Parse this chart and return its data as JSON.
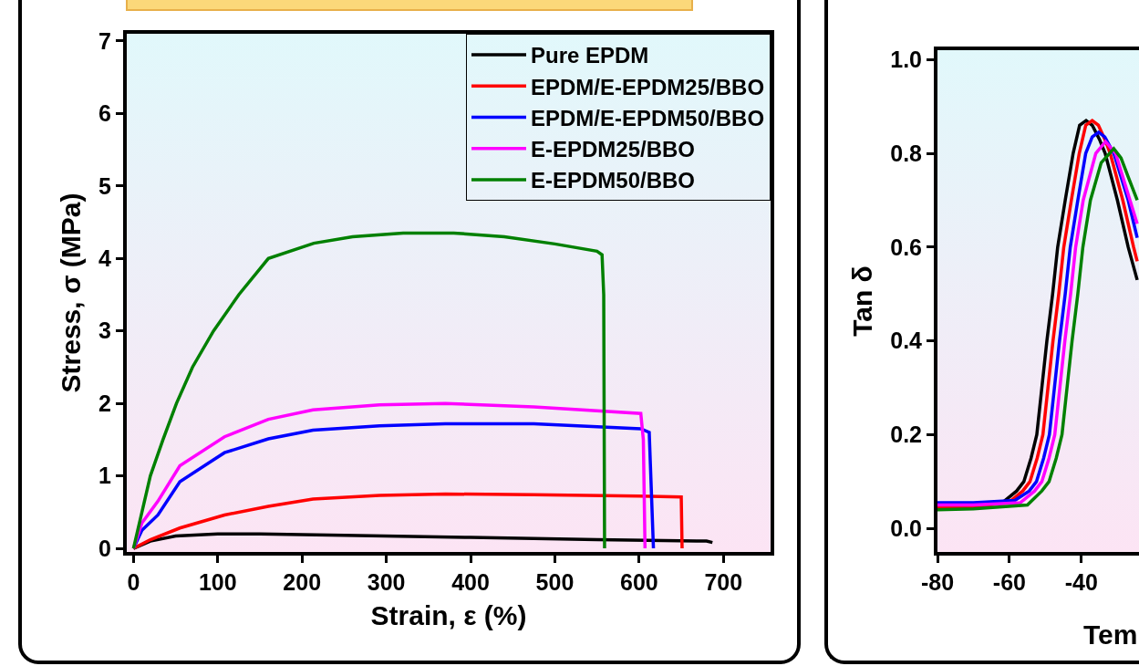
{
  "chart_data": [
    {
      "type": "line",
      "xlabel": "Strain, ε (%)",
      "ylabel": "Stress, σ (MPa)",
      "xlim": [
        -8,
        756
      ],
      "xticks": [
        0,
        100,
        200,
        300,
        400,
        500,
        600,
        700
      ],
      "ylim": [
        -0.05,
        7.1
      ],
      "yticks": [
        0,
        1,
        2,
        3,
        4,
        5,
        6,
        7
      ],
      "grid": false,
      "legend": "top right",
      "marker": "none",
      "line_style": "solid",
      "series": [
        {
          "name": "Pure EPDM",
          "color": "#000000",
          "x": [
            0,
            20,
            50,
            100,
            150,
            250,
            400,
            550,
            680,
            687
          ],
          "values": [
            0,
            0.1,
            0.17,
            0.2,
            0.2,
            0.18,
            0.15,
            0.12,
            0.1,
            0.08
          ]
        },
        {
          "name": "EPDM/E-EPDM25/BBO",
          "color": "#ff0000",
          "x": [
            0,
            20,
            55,
            108,
            160,
            213,
            292,
            370,
            475,
            600,
            650,
            651
          ],
          "values": [
            0,
            0.12,
            0.28,
            0.46,
            0.58,
            0.68,
            0.73,
            0.75,
            0.74,
            0.72,
            0.71,
            0
          ]
        },
        {
          "name": "EPDM/E-EPDM50/BBO",
          "color": "#0000ff",
          "x": [
            0,
            10,
            29,
            55,
            108,
            160,
            213,
            292,
            370,
            475,
            602,
            612,
            617
          ],
          "values": [
            0,
            0.25,
            0.46,
            0.92,
            1.32,
            1.51,
            1.63,
            1.69,
            1.72,
            1.72,
            1.65,
            1.6,
            0
          ]
        },
        {
          "name": "E-EPDM25/BBO",
          "color": "#ff00ff",
          "x": [
            0,
            10,
            29,
            55,
            108,
            160,
            213,
            292,
            370,
            475,
            602,
            605,
            607
          ],
          "values": [
            0,
            0.35,
            0.65,
            1.14,
            1.54,
            1.78,
            1.91,
            1.98,
            2.0,
            1.95,
            1.86,
            1.5,
            0
          ]
        },
        {
          "name": "E-EPDM50/BBO",
          "color": "#008000",
          "x": [
            0,
            10,
            20,
            35,
            51,
            70,
            95,
            125,
            160,
            214,
            260,
            320,
            380,
            440,
            500,
            550,
            556,
            558,
            559
          ],
          "values": [
            0,
            0.5,
            1.0,
            1.5,
            2,
            2.5,
            3,
            3.5,
            4,
            4.21,
            4.3,
            4.35,
            4.35,
            4.3,
            4.2,
            4.1,
            4.05,
            3.5,
            0
          ]
        }
      ]
    },
    {
      "type": "line",
      "xlabel": "Tem",
      "ylabel": "Tan δ",
      "xlim": [
        -80,
        -24
      ],
      "xticks": [
        -80,
        -60,
        -40
      ],
      "ylim": [
        -0.05,
        1.02
      ],
      "yticks": [
        {
          "value": 0,
          "label": "0.0"
        },
        0.2,
        0.4,
        0.6,
        0.8,
        {
          "value": 1,
          "label": "1.0"
        }
      ],
      "grid": false,
      "marker": "none",
      "line_style": "solid",
      "series": [
        {
          "color": "#000000",
          "x": [
            -80,
            -70,
            -62,
            -58,
            -56,
            -54,
            -52.4,
            -51,
            -49.6,
            -48,
            -46.6,
            -44.5,
            -42.3,
            -40.5,
            -38.7,
            -37,
            -35,
            -33.4,
            -30,
            -27,
            -24.5
          ],
          "values": [
            0.045,
            0.047,
            0.055,
            0.08,
            0.1,
            0.15,
            0.2,
            0.3,
            0.4,
            0.5,
            0.6,
            0.7,
            0.8,
            0.86,
            0.87,
            0.86,
            0.83,
            0.8,
            0.7,
            0.6,
            0.53
          ]
        },
        {
          "color": "#ff0000",
          "x": [
            -80,
            -70,
            -60.3,
            -56.3,
            -54.3,
            -52.3,
            -50.7,
            -49.3,
            -47.9,
            -46.3,
            -44.9,
            -42.8,
            -40.6,
            -38.8,
            -37,
            -35.3,
            -33.5,
            -32,
            -28.5,
            -25.5,
            -24.5
          ],
          "values": [
            0.045,
            0.047,
            0.055,
            0.08,
            0.1,
            0.15,
            0.2,
            0.3,
            0.4,
            0.5,
            0.6,
            0.7,
            0.8,
            0.86,
            0.87,
            0.86,
            0.83,
            0.8,
            0.7,
            0.6,
            0.57
          ]
        },
        {
          "color": "#0000ff",
          "x": [
            -80,
            -70,
            -58.5,
            -54.5,
            -52.5,
            -50.5,
            -48.9,
            -47.5,
            -46.1,
            -44.5,
            -43.1,
            -41,
            -38.8,
            -37,
            -35.2,
            -33.5,
            -31,
            -27,
            -24.5
          ],
          "values": [
            0.055,
            0.055,
            0.06,
            0.08,
            0.1,
            0.15,
            0.2,
            0.3,
            0.4,
            0.5,
            0.6,
            0.7,
            0.8,
            0.835,
            0.845,
            0.835,
            0.8,
            0.7,
            0.62
          ]
        },
        {
          "color": "#ff00ff",
          "x": [
            -80,
            -70,
            -57,
            -53,
            -51,
            -49,
            -47.4,
            -46,
            -44.6,
            -43,
            -41.6,
            -39.5,
            -36,
            -33.3,
            -30.5,
            -26.5,
            -24.5
          ],
          "values": [
            0.05,
            0.05,
            0.055,
            0.08,
            0.1,
            0.15,
            0.2,
            0.3,
            0.4,
            0.5,
            0.6,
            0.7,
            0.8,
            0.825,
            0.8,
            0.7,
            0.65
          ]
        },
        {
          "color": "#008000",
          "x": [
            -80,
            -70,
            -55,
            -51,
            -49,
            -47,
            -45.4,
            -44,
            -42.6,
            -41,
            -39.6,
            -37.5,
            -34.5,
            -31,
            -29,
            -27,
            -24.5
          ],
          "values": [
            0.04,
            0.042,
            0.05,
            0.08,
            0.1,
            0.15,
            0.2,
            0.3,
            0.4,
            0.5,
            0.6,
            0.7,
            0.78,
            0.81,
            0.79,
            0.75,
            0.7
          ]
        }
      ]
    }
  ]
}
